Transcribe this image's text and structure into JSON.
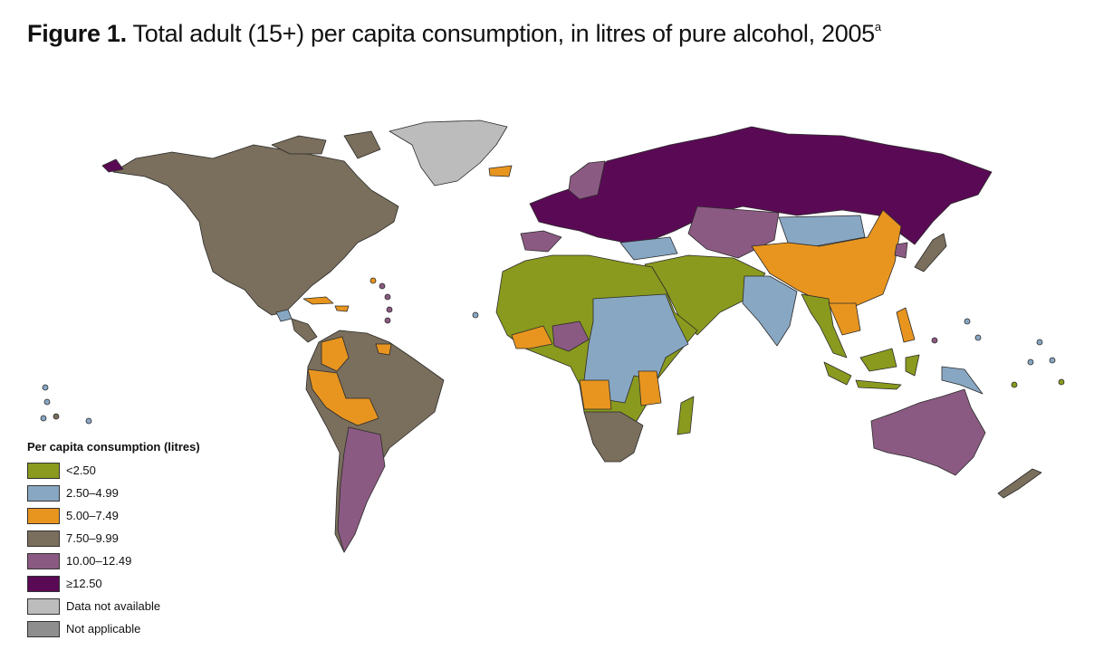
{
  "title": {
    "label": "Figure 1.",
    "text": "Total adult (15+) per capita consumption, in litres of pure alcohol, 2005",
    "note": "a"
  },
  "legend": {
    "title": "Per capita consumption (litres)",
    "items": [
      {
        "name": "<2.50",
        "color": "#8a9a1e"
      },
      {
        "name": "2.50–4.99",
        "color": "#88a7c3"
      },
      {
        "name": "5.00–7.49",
        "color": "#e8951f"
      },
      {
        "name": "7.50–9.99",
        "color": "#7a6e5c"
      },
      {
        "name": "10.00–12.49",
        "color": "#8b5a82"
      },
      {
        "name": "≥12.50",
        "color": "#5a0a55"
      },
      {
        "name": "Data not available",
        "color": "#bcbcbc"
      },
      {
        "name": "Not applicable",
        "color": "#8e8e8e"
      }
    ]
  }
}
